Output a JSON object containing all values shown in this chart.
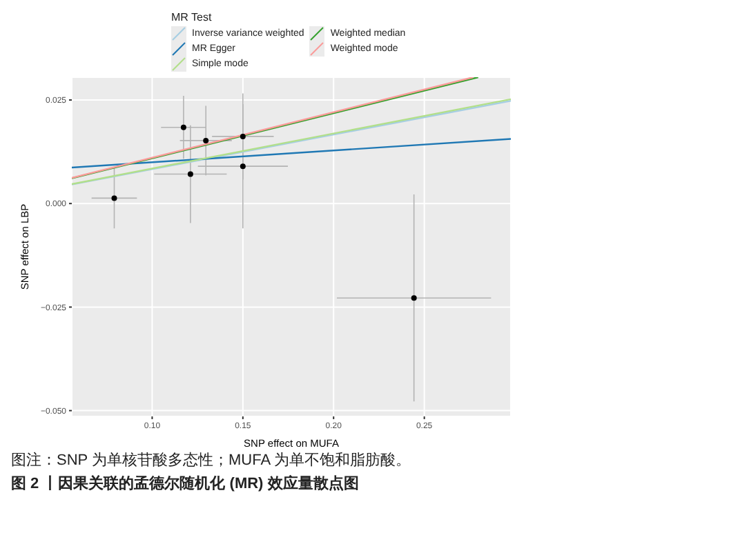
{
  "chart_data": {
    "type": "scatter",
    "xlabel": "SNP effect on MUFA",
    "ylabel": "SNP effect on LBP",
    "legend_title": "MR Test",
    "legend": "top",
    "grid": true,
    "marker": "circle",
    "xlim": [
      0.0557,
      0.2977
    ],
    "ylim": [
      -0.0514,
      0.0305
    ],
    "xticks": [
      {
        "value": 0.1,
        "label": "0.10"
      },
      {
        "value": 0.15,
        "label": "0.15"
      },
      {
        "value": 0.2,
        "label": "0.20"
      },
      {
        "value": 0.25,
        "label": "0.25"
      }
    ],
    "yticks": [
      {
        "value": -0.05,
        "label": "−0.050"
      },
      {
        "value": -0.025,
        "label": "−0.025"
      },
      {
        "value": 0,
        "label": "0.000"
      },
      {
        "value": 0.025,
        "label": "0.025"
      }
    ],
    "series": [
      {
        "color": "#000000",
        "x": [
          0.0791,
          0.1173,
          0.1211,
          0.1296,
          0.15,
          0.15,
          0.2443
        ],
        "values": [
          0.0013,
          0.0184,
          0.0071,
          0.0152,
          0.0162,
          0.009,
          -0.0228
        ],
        "errors": [
          0.0073,
          0.0076,
          0.0118,
          0.0084,
          0.0104,
          0.015,
          0.025
        ],
        "xerrors": [
          0.0125,
          0.0124,
          0.02,
          0.0143,
          0.017,
          0.0248,
          0.0425
        ]
      },
      {
        "type": "line",
        "name": "Inverse variance weighted",
        "color": "#a6cee3",
        "x": [
          0.0557,
          0.2977
        ],
        "values": [
          0.0046,
          0.0248
        ],
        "marker": "none"
      },
      {
        "type": "line",
        "name": "MR Egger",
        "color": "#1f78b4",
        "x": [
          0.0557,
          0.2977
        ],
        "values": [
          0.0087,
          0.0156
        ],
        "marker": "none"
      },
      {
        "type": "line",
        "name": "Simple mode",
        "color": "#b2df8a",
        "x": [
          0.0557,
          0.2977
        ],
        "values": [
          0.0047,
          0.0252
        ],
        "marker": "none"
      },
      {
        "type": "line",
        "name": "Weighted median",
        "color": "#33a02c",
        "x": [
          0.0557,
          0.2797
        ],
        "values": [
          0.0061,
          0.0305
        ],
        "marker": "none"
      },
      {
        "type": "line",
        "name": "Weighted mode",
        "color": "#fb9a99",
        "x": [
          0.0557,
          0.277
        ],
        "values": [
          0.0062,
          0.0305
        ],
        "marker": "none"
      }
    ],
    "annotations": [
      "图注：SNP 为单核苷酸多态性；MUFA 为单不饱和脂肪酸。",
      "图 2 丨因果关联的孟德尔随机化 (MR) 效应量散点图"
    ]
  }
}
